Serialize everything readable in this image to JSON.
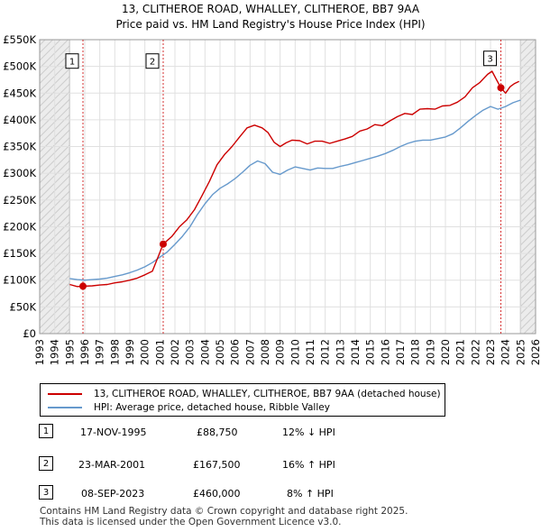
{
  "chart_data": {
    "type": "line",
    "title": "13, CLITHEROE ROAD, WHALLEY, CLITHEROE, BB7 9AA",
    "subtitle": "Price paid vs. HM Land Registry's House Price Index (HPI)",
    "xlim": [
      1993,
      2026
    ],
    "ylim": [
      0,
      550000
    ],
    "x_ticks": [
      1993,
      1994,
      1995,
      1996,
      1997,
      1998,
      1999,
      2000,
      2001,
      2002,
      2003,
      2004,
      2005,
      2006,
      2007,
      2008,
      2009,
      2010,
      2011,
      2012,
      2013,
      2014,
      2015,
      2016,
      2017,
      2018,
      2019,
      2020,
      2021,
      2022,
      2023,
      2024,
      2025,
      2026
    ],
    "y_ticks": [
      {
        "value": 0,
        "label": "£0"
      },
      {
        "value": 50000,
        "label": "£50K"
      },
      {
        "value": 100000,
        "label": "£100K"
      },
      {
        "value": 150000,
        "label": "£150K"
      },
      {
        "value": 200000,
        "label": "£200K"
      },
      {
        "value": 250000,
        "label": "£250K"
      },
      {
        "value": 300000,
        "label": "£300K"
      },
      {
        "value": 350000,
        "label": "£350K"
      },
      {
        "value": 400000,
        "label": "£400K"
      },
      {
        "value": 450000,
        "label": "£450K"
      },
      {
        "value": 500000,
        "label": "£500K"
      },
      {
        "value": 550000,
        "label": "£550K"
      }
    ],
    "hatched_ranges": [
      [
        1993,
        1995.0
      ],
      [
        2025.0,
        2026
      ]
    ],
    "series": [
      {
        "name": "13, CLITHEROE ROAD, WHALLEY, CLITHEROE, BB7 9AA (detached house)",
        "color": "#cc0000",
        "x": [
          1995.0,
          1995.5,
          1995.88,
          1996.5,
          1997,
          1997.5,
          1998,
          1998.5,
          1999,
          1999.5,
          2000,
          2000.5,
          2001.22,
          2001.8,
          2002.3,
          2002.8,
          2003.3,
          2003.8,
          2004.3,
          2004.8,
          2005.3,
          2005.8,
          2006.3,
          2006.8,
          2007.3,
          2007.8,
          2008.2,
          2008.6,
          2009.0,
          2009.4,
          2009.8,
          2010.3,
          2010.8,
          2011.3,
          2011.8,
          2012.3,
          2012.8,
          2013.3,
          2013.8,
          2014.3,
          2014.8,
          2015.3,
          2015.8,
          2016.3,
          2016.8,
          2017.3,
          2017.8,
          2018.3,
          2018.8,
          2019.3,
          2019.8,
          2020.3,
          2020.8,
          2021.3,
          2021.8,
          2022.3,
          2022.8,
          2023.1,
          2023.4,
          2023.69,
          2024.0,
          2024.3,
          2024.6,
          2024.9
        ],
        "values": [
          92000,
          88000,
          88750,
          89500,
          91000,
          92000,
          95000,
          97000,
          100000,
          104000,
          110000,
          117000,
          167500,
          182000,
          200000,
          213000,
          232000,
          258000,
          285000,
          316000,
          335000,
          350000,
          368000,
          385000,
          390000,
          385000,
          376000,
          358000,
          350000,
          357000,
          362000,
          361000,
          355000,
          360000,
          360000,
          356000,
          360000,
          364000,
          369000,
          379000,
          383000,
          391000,
          389000,
          398000,
          406000,
          412000,
          410000,
          420000,
          421000,
          420000,
          426000,
          427000,
          433000,
          443000,
          460000,
          470000,
          485000,
          491000,
          475000,
          460000,
          450000,
          462000,
          468000,
          472000
        ]
      },
      {
        "name": "HPI: Average price, detached house, Ribble Valley",
        "color": "#6699cc",
        "x": [
          1995.0,
          1995.5,
          1996,
          1996.5,
          1997,
          1997.5,
          1998,
          1998.5,
          1999,
          1999.5,
          2000,
          2000.5,
          2001,
          2001.5,
          2002,
          2002.5,
          2003,
          2003.5,
          2004,
          2004.5,
          2005,
          2005.5,
          2006,
          2006.5,
          2007,
          2007.5,
          2008,
          2008.5,
          2009,
          2009.5,
          2010,
          2010.5,
          2011,
          2011.5,
          2012,
          2012.5,
          2013,
          2013.5,
          2014,
          2014.5,
          2015,
          2015.5,
          2016,
          2016.5,
          2017,
          2017.5,
          2018,
          2018.5,
          2019,
          2019.5,
          2020,
          2020.5,
          2021,
          2021.5,
          2022,
          2022.5,
          2023,
          2023.5,
          2024,
          2024.5,
          2025.0
        ],
        "values": [
          103000,
          101000,
          100000,
          101000,
          102000,
          104000,
          107000,
          110000,
          114000,
          119000,
          125000,
          133000,
          143000,
          153000,
          167000,
          182000,
          200000,
          223000,
          243000,
          260000,
          272000,
          280000,
          290000,
          302000,
          315000,
          323000,
          318000,
          302000,
          298000,
          306000,
          312000,
          309000,
          306000,
          310000,
          309000,
          309000,
          313000,
          316000,
          320000,
          324000,
          328000,
          332000,
          337000,
          343000,
          350000,
          356000,
          360000,
          362000,
          362000,
          365000,
          368000,
          374000,
          385000,
          397000,
          408000,
          418000,
          425000,
          420000,
          425000,
          432000,
          437000
        ]
      }
    ],
    "markers": [
      {
        "label": "1",
        "x": 1995.88,
        "value": 88750,
        "label_value": 510000
      },
      {
        "label": "2",
        "x": 2001.22,
        "value": 167500,
        "label_value": 510000
      },
      {
        "label": "3",
        "x": 2023.69,
        "value": 460000,
        "label_value": 515000
      }
    ]
  },
  "legend": {
    "property_label": "13, CLITHEROE ROAD, WHALLEY, CLITHEROE, BB7 9AA (detached house)",
    "hpi_label": "HPI: Average price, detached house, Ribble Valley"
  },
  "sales": [
    {
      "num": "1",
      "date": "17-NOV-1995",
      "price": "£88,750",
      "hpi": "12% ↓ HPI"
    },
    {
      "num": "2",
      "date": "23-MAR-2001",
      "price": "£167,500",
      "hpi": "16% ↑ HPI"
    },
    {
      "num": "3",
      "date": "08-SEP-2023",
      "price": "£460,000",
      "hpi": "8% ↑ HPI"
    }
  ],
  "footer": {
    "line1": "Contains HM Land Registry data © Crown copyright and database right 2025.",
    "line2": "This data is licensed under the Open Government Licence v3.0."
  }
}
